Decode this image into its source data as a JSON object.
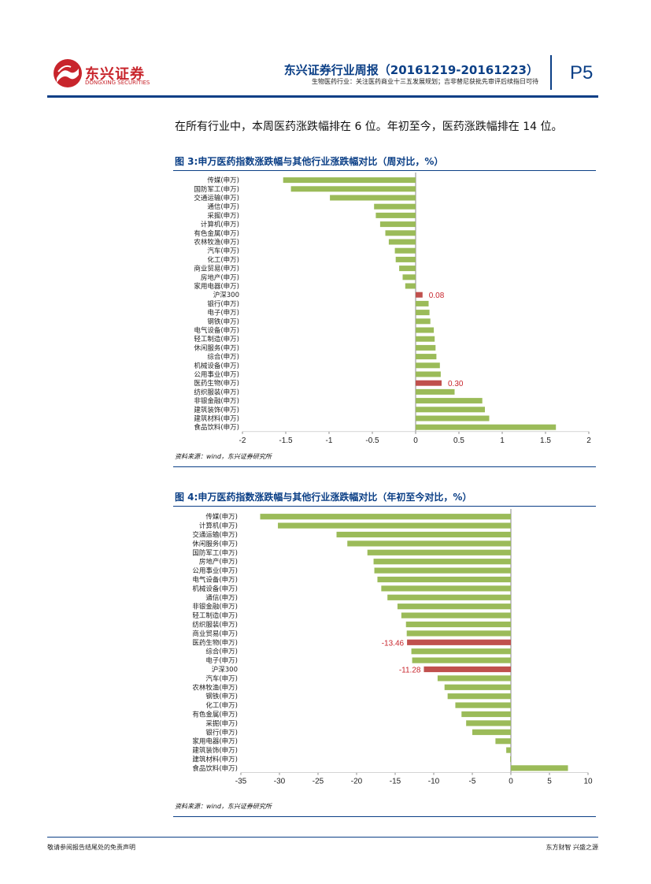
{
  "header": {
    "logo_text": "东兴证券",
    "logo_sub": "DONGXING SECURITIES",
    "report_title": "东兴证券行业周报（20161219-20161223）",
    "report_subtitle": "生物医药行业：关注医药商业十三五发展规划；吉非替尼获批先审评后续指日可待",
    "page_number": "P5"
  },
  "intro_text": "在所有行业中，本周医药涨跌幅排在 6 位。年初至今，医药涨跌幅排在 14 位。",
  "figures": [
    {
      "title": "图 3:申万医药指数涨跌幅与其他行业涨跌幅对比（周对比，%）",
      "source": "资料来源：wind，东兴证券研究所"
    },
    {
      "title": "图 4:申万医药指数涨跌幅与其他行业涨跌幅对比（年初至今对比，%）",
      "source": "资料来源：wind，东兴证券研究所"
    }
  ],
  "footer": {
    "left": "敬请参阅报告结尾处的免责声明",
    "right": "东方财智 兴盛之源"
  },
  "colors": {
    "brand_blue": "#0b3f86",
    "brand_red": "#c8252c",
    "bar_green": "#9bbb59",
    "bar_highlight": "#c0504d"
  },
  "chart_data": [
    {
      "type": "bar",
      "orientation": "horizontal",
      "title": "图 3:申万医药指数涨跌幅与其他行业涨跌幅对比（周对比，%）",
      "categories": [
        "传媒(申万)",
        "国防军工(申万)",
        "交通运输(申万)",
        "通信(申万)",
        "采掘(申万)",
        "计算机(申万)",
        "有色金属(申万)",
        "农林牧渔(申万)",
        "汽车(申万)",
        "化工(申万)",
        "商业贸易(申万)",
        "房地产(申万)",
        "家用电器(申万)",
        "沪深300",
        "银行(申万)",
        "电子(申万)",
        "钢铁(申万)",
        "电气设备(申万)",
        "轻工制造(申万)",
        "休闲服务(申万)",
        "综合(申万)",
        "机械设备(申万)",
        "公用事业(申万)",
        "医药生物(申万)",
        "纺织服装(申万)",
        "非银金融(申万)",
        "建筑装饰(申万)",
        "建筑材料(申万)",
        "食品饮料(申万)"
      ],
      "values": [
        -1.53,
        -1.44,
        -0.99,
        -0.48,
        -0.46,
        -0.41,
        -0.35,
        -0.31,
        -0.24,
        -0.23,
        -0.19,
        -0.15,
        -0.12,
        0.08,
        0.15,
        0.16,
        0.17,
        0.21,
        0.22,
        0.23,
        0.24,
        0.28,
        0.29,
        0.3,
        0.45,
        0.77,
        0.8,
        0.85,
        1.62
      ],
      "highlight": {
        "沪深300": "0.08",
        "医药生物(申万)": "0.30"
      },
      "xlim": [
        -2,
        2
      ],
      "xticks": [
        "-2",
        "-1.5",
        "-1",
        "-0.5",
        "0",
        "0.5",
        "1",
        "1.5",
        "2"
      ],
      "xlabel": "",
      "ylabel": ""
    },
    {
      "type": "bar",
      "orientation": "horizontal",
      "title": "图 4:申万医药指数涨跌幅与其他行业涨跌幅对比（年初至今对比，%）",
      "categories": [
        "传媒(申万)",
        "计算机(申万)",
        "交通运输(申万)",
        "休闲服务(申万)",
        "国防军工(申万)",
        "房地产(申万)",
        "公用事业(申万)",
        "电气设备(申万)",
        "机械设备(申万)",
        "通信(申万)",
        "非银金融(申万)",
        "轻工制造(申万)",
        "纺织服装(申万)",
        "商业贸易(申万)",
        "医药生物(申万)",
        "综合(申万)",
        "电子(申万)",
        "沪深300",
        "汽车(申万)",
        "农林牧渔(申万)",
        "钢铁(申万)",
        "化工(申万)",
        "有色金属(申万)",
        "采掘(申万)",
        "银行(申万)",
        "家用电器(申万)",
        "建筑装饰(申万)",
        "建筑材料(申万)",
        "食品饮料(申万)"
      ],
      "values": [
        -32.5,
        -30.2,
        -22.6,
        -21.2,
        -18.6,
        -17.8,
        -17.7,
        -17.3,
        -16.8,
        -16.0,
        -14.7,
        -14.2,
        -13.6,
        -13.5,
        -13.46,
        -12.9,
        -12.8,
        -11.28,
        -9.5,
        -8.6,
        -8.2,
        -7.2,
        -6.4,
        -5.8,
        -5.0,
        -2.0,
        -0.6,
        -0.1,
        7.4
      ],
      "highlight": {
        "医药生物(申万)": "-13.46",
        "沪深300": "-11.28"
      },
      "xlim": [
        -35,
        10
      ],
      "xticks": [
        "-35",
        "-30",
        "-25",
        "-20",
        "-15",
        "-10",
        "-5",
        "0",
        "5",
        "10"
      ],
      "xlabel": "",
      "ylabel": ""
    }
  ]
}
